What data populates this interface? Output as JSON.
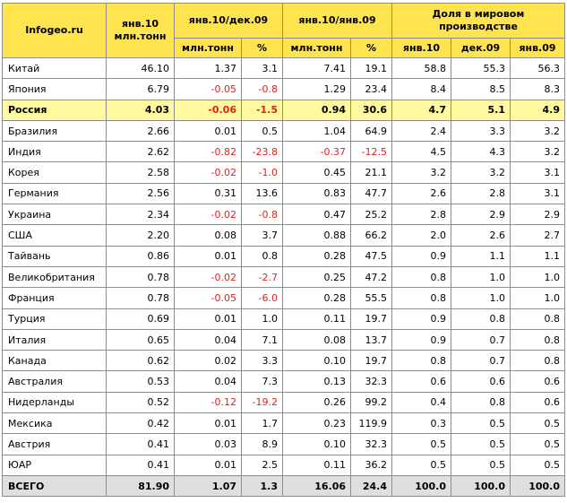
{
  "header": {
    "brand": "Infogeo.ru",
    "col_jan10": "янв.10",
    "col_jan10_unit": "млн.тонн",
    "col_jan10_dec09": "янв.10/дек.09",
    "col_jan10_jan09": "янв.10/янв.09",
    "col_share": "Доля в мировом производстве",
    "sub_mt_1": "млн.тонн",
    "sub_pct_1": "%",
    "sub_mt_2": "млн.тонн",
    "sub_pct_2": "%",
    "sub_jan10": "янв.10",
    "sub_dec09": "дек.09",
    "sub_jan09": "янв.09"
  },
  "rows": [
    {
      "name": "Китай",
      "v": [
        "46.10",
        "1.37",
        "3.1",
        "7.41",
        "19.1",
        "58.8",
        "55.3",
        "56.3"
      ]
    },
    {
      "name": "Япония",
      "v": [
        "6.79",
        "-0.05",
        "-0.8",
        "1.29",
        "23.4",
        "8.4",
        "8.5",
        "8.3"
      ]
    },
    {
      "name": "Россия",
      "v": [
        "4.03",
        "-0.06",
        "-1.5",
        "0.94",
        "30.6",
        "4.7",
        "5.1",
        "4.9"
      ]
    },
    {
      "name": "Бразилия",
      "v": [
        "2.66",
        "0.01",
        "0.5",
        "1.04",
        "64.9",
        "2.4",
        "3.3",
        "3.2"
      ]
    },
    {
      "name": "Индия",
      "v": [
        "2.62",
        "-0.82",
        "-23.8",
        "-0.37",
        "-12.5",
        "4.5",
        "4.3",
        "3.2"
      ]
    },
    {
      "name": "Корея",
      "v": [
        "2.58",
        "-0.02",
        "-1.0",
        "0.45",
        "21.1",
        "3.2",
        "3.2",
        "3.1"
      ]
    },
    {
      "name": "Германия",
      "v": [
        "2.56",
        "0.31",
        "13.6",
        "0.83",
        "47.7",
        "2.6",
        "2.8",
        "3.1"
      ]
    },
    {
      "name": "Украина",
      "v": [
        "2.34",
        "-0.02",
        "-0.8",
        "0.47",
        "25.2",
        "2.8",
        "2.9",
        "2.9"
      ]
    },
    {
      "name": "США",
      "v": [
        "2.20",
        "0.08",
        "3.7",
        "0.88",
        "66.2",
        "2.0",
        "2.6",
        "2.7"
      ]
    },
    {
      "name": "Тайвань",
      "v": [
        "0.86",
        "0.01",
        "0.8",
        "0.28",
        "47.5",
        "0.9",
        "1.1",
        "1.1"
      ]
    },
    {
      "name": "Великобритания",
      "v": [
        "0.78",
        "-0.02",
        "-2.7",
        "0.25",
        "47.2",
        "0.8",
        "1.0",
        "1.0"
      ]
    },
    {
      "name": "Франция",
      "v": [
        "0.78",
        "-0.05",
        "-6.0",
        "0.28",
        "55.5",
        "0.8",
        "1.0",
        "1.0"
      ]
    },
    {
      "name": "Турция",
      "v": [
        "0.69",
        "0.01",
        "1.0",
        "0.11",
        "19.7",
        "0.9",
        "0.8",
        "0.8"
      ]
    },
    {
      "name": "Италия",
      "v": [
        "0.65",
        "0.04",
        "7.1",
        "0.08",
        "13.7",
        "0.9",
        "0.7",
        "0.8"
      ]
    },
    {
      "name": "Канада",
      "v": [
        "0.62",
        "0.02",
        "3.3",
        "0.10",
        "19.7",
        "0.8",
        "0.7",
        "0.8"
      ]
    },
    {
      "name": "Австралия",
      "v": [
        "0.53",
        "0.04",
        "7.3",
        "0.13",
        "32.3",
        "0.6",
        "0.6",
        "0.6"
      ]
    },
    {
      "name": "Нидерланды",
      "v": [
        "0.52",
        "-0.12",
        "-19.2",
        "0.26",
        "99.2",
        "0.4",
        "0.8",
        "0.6"
      ]
    },
    {
      "name": "Мексика",
      "v": [
        "0.42",
        "0.01",
        "1.7",
        "0.23",
        "119.9",
        "0.3",
        "0.5",
        "0.5"
      ]
    },
    {
      "name": "Австрия",
      "v": [
        "0.41",
        "0.03",
        "8.9",
        "0.10",
        "32.3",
        "0.5",
        "0.5",
        "0.5"
      ]
    },
    {
      "name": "ЮАР",
      "v": [
        "0.41",
        "0.01",
        "2.5",
        "0.11",
        "36.2",
        "0.5",
        "0.5",
        "0.5"
      ]
    },
    {
      "name": "ВСЕГО",
      "v": [
        "81.90",
        "1.07",
        "1.3",
        "16.06",
        "24.4",
        "100.0",
        "100.0",
        "100.0"
      ]
    }
  ],
  "colors": {
    "header_bg": "#ffe34f",
    "highlight_bg": "#fffaa0",
    "total_bg": "#dfdfdf",
    "negative": "#e0211f",
    "border": "#8c8c8c"
  }
}
